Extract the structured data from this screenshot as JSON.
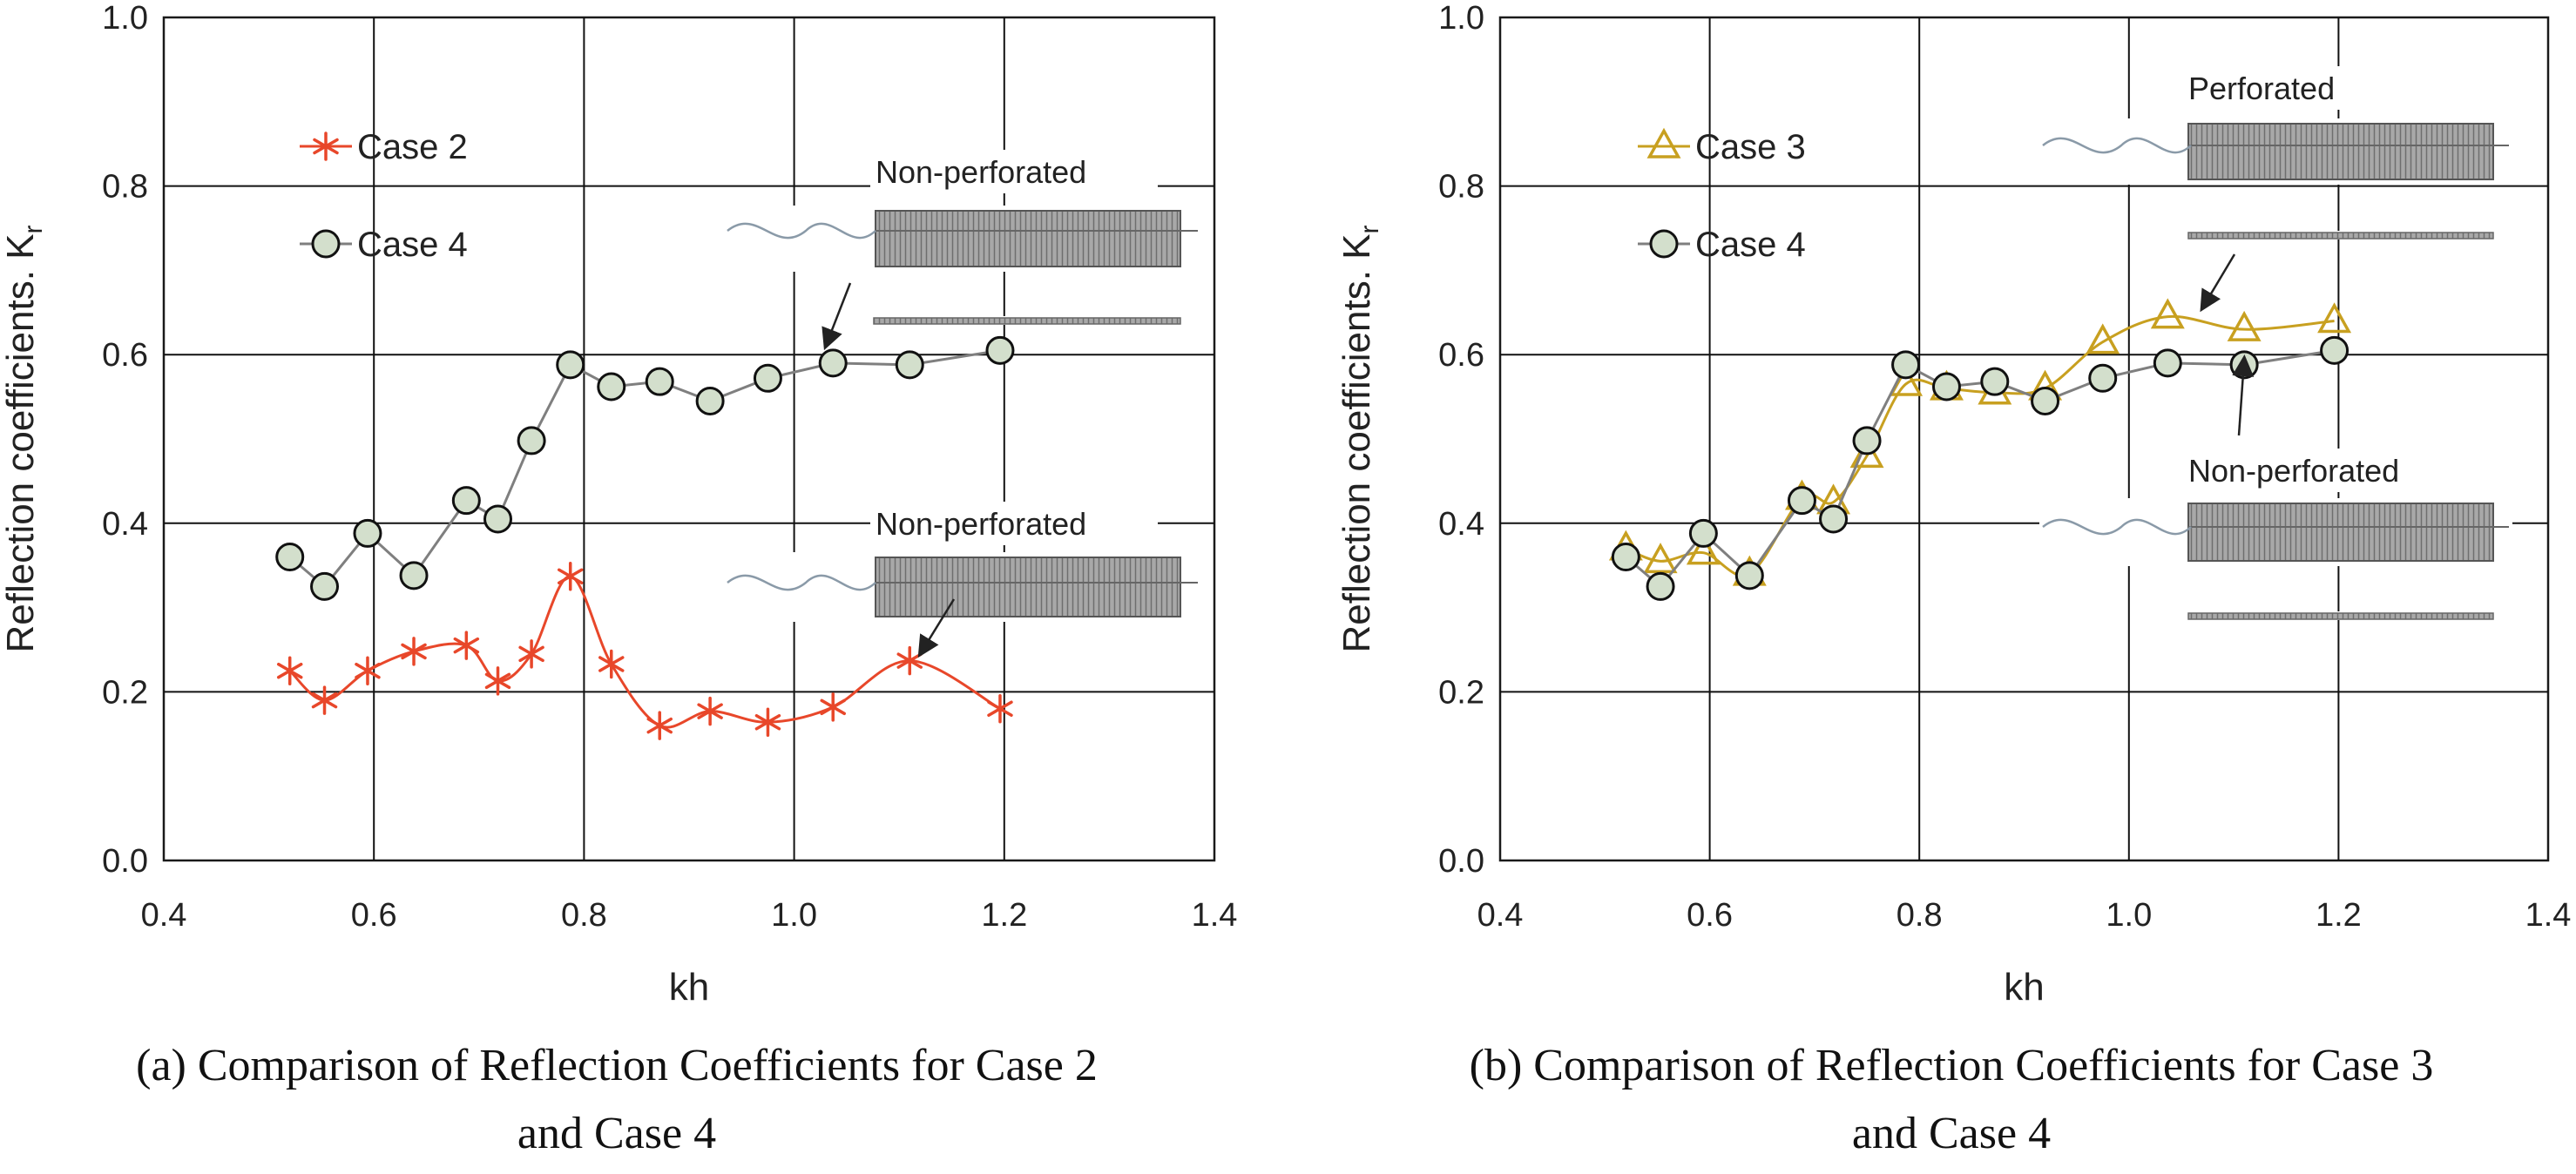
{
  "chart_data": [
    {
      "id": "a",
      "type": "line",
      "xlabel": "kh",
      "ylabel_main": "Reflection coefficients. K",
      "ylabel_sub": "r",
      "xlim": [
        0.4,
        1.4
      ],
      "ylim": [
        0.0,
        1.0
      ],
      "xticks": [
        "0.4",
        "0.6",
        "0.8",
        "1.0",
        "1.2",
        "1.4"
      ],
      "yticks": [
        "0.0",
        "0.2",
        "0.4",
        "0.6",
        "0.8",
        "1.0"
      ],
      "grid": true,
      "legend_position": "top-left",
      "caption_line1": "(a) Comparison of Reflection Coefficients for Case 2",
      "caption_line2": "and Case 4",
      "series": [
        {
          "name": "Case 2",
          "marker": "asterisk",
          "color": "#e8472a",
          "x": [
            0.52,
            0.553,
            0.594,
            0.638,
            0.688,
            0.718,
            0.75,
            0.787,
            0.826,
            0.872,
            0.92,
            0.975,
            1.037,
            1.11,
            1.196
          ],
          "y": [
            0.225,
            0.19,
            0.225,
            0.248,
            0.255,
            0.213,
            0.245,
            0.337,
            0.233,
            0.16,
            0.177,
            0.164,
            0.182,
            0.237,
            0.18
          ]
        },
        {
          "name": "Case 4",
          "marker": "circle",
          "color": "#7f7f7f",
          "fill": "#d3dfcc",
          "x": [
            0.52,
            0.553,
            0.594,
            0.638,
            0.688,
            0.718,
            0.75,
            0.787,
            0.826,
            0.872,
            0.92,
            0.975,
            1.037,
            1.11,
            1.196
          ],
          "y": [
            0.36,
            0.325,
            0.388,
            0.338,
            0.427,
            0.405,
            0.498,
            0.588,
            0.562,
            0.568,
            0.545,
            0.572,
            0.59,
            0.588,
            0.605
          ]
        }
      ],
      "annotations": [
        {
          "label": "Non-perforated",
          "target_x": 1.03,
          "target_y": 0.61
        },
        {
          "label": "Non-perforated",
          "target_x": 1.12,
          "target_y": 0.245
        }
      ]
    },
    {
      "id": "b",
      "type": "line",
      "xlabel": "kh",
      "ylabel_main": "Reflection coefficients. K",
      "ylabel_sub": "r",
      "xlim": [
        0.4,
        1.4
      ],
      "ylim": [
        0.0,
        1.0
      ],
      "xticks": [
        "0.4",
        "0.6",
        "0.8",
        "1.0",
        "1.2",
        "1.4"
      ],
      "yticks": [
        "0.0",
        "0.2",
        "0.4",
        "0.6",
        "0.8",
        "1.0"
      ],
      "grid": true,
      "legend_position": "top-left",
      "caption_line1": "(b) Comparison of Reflection Coefficients for Case 3",
      "caption_line2": "and Case 4",
      "series": [
        {
          "name": "Case 3",
          "marker": "triangle",
          "color": "#c8a020",
          "x": [
            0.52,
            0.553,
            0.594,
            0.638,
            0.688,
            0.718,
            0.75,
            0.787,
            0.826,
            0.872,
            0.92,
            0.975,
            1.037,
            1.11,
            1.196
          ],
          "y": [
            0.37,
            0.355,
            0.365,
            0.34,
            0.43,
            0.425,
            0.48,
            0.565,
            0.56,
            0.555,
            0.56,
            0.615,
            0.645,
            0.63,
            0.64
          ]
        },
        {
          "name": "Case 4",
          "marker": "circle",
          "color": "#7f7f7f",
          "fill": "#d3dfcc",
          "x": [
            0.52,
            0.553,
            0.594,
            0.638,
            0.688,
            0.718,
            0.75,
            0.787,
            0.826,
            0.872,
            0.92,
            0.975,
            1.037,
            1.11,
            1.196
          ],
          "y": [
            0.36,
            0.325,
            0.388,
            0.338,
            0.427,
            0.405,
            0.498,
            0.588,
            0.562,
            0.568,
            0.545,
            0.572,
            0.59,
            0.588,
            0.605
          ]
        }
      ],
      "annotations": [
        {
          "label": "Perforated",
          "target_x": 1.07,
          "target_y": 0.655
        },
        {
          "label": "Non-perforated",
          "target_x": 1.11,
          "target_y": 0.595
        }
      ]
    }
  ]
}
